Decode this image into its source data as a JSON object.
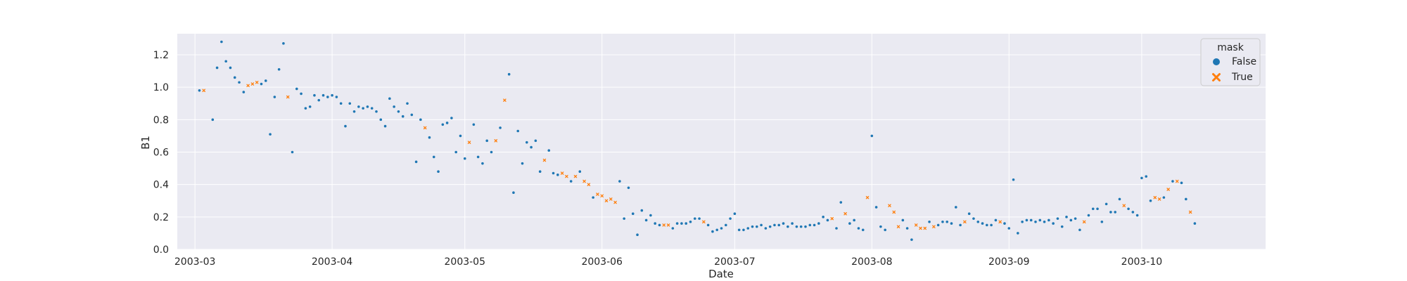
{
  "chart_data": {
    "type": "scatter",
    "xlabel": "Date",
    "ylabel": "B1",
    "x_ticks": [
      "2003-03",
      "2003-04",
      "2003-05",
      "2003-06",
      "2003-07",
      "2003-08",
      "2003-09",
      "2003-10"
    ],
    "xlim": [
      "2003-02-25",
      "2003-10-29"
    ],
    "ylim": [
      0.0,
      1.33
    ],
    "y_ticks": [
      0.0,
      0.2,
      0.4,
      0.6,
      0.8,
      1.0,
      1.2
    ],
    "grid": true,
    "legend": {
      "title": "mask",
      "placement": "top-right",
      "entries": [
        {
          "label": "False",
          "marker": "circle",
          "color": "#1f77b4"
        },
        {
          "label": "True",
          "marker": "x",
          "color": "#ff7f0e"
        }
      ]
    },
    "colors": {
      "axes_background": "#eaeaf2",
      "grid": "#ffffff"
    },
    "series": [
      {
        "name": "False",
        "color": "#1f77b4",
        "marker": "circle",
        "points": [
          [
            "2003-03-02",
            0.98
          ],
          [
            "2003-03-05",
            0.8
          ],
          [
            "2003-03-06",
            1.12
          ],
          [
            "2003-03-07",
            1.28
          ],
          [
            "2003-03-08",
            1.16
          ],
          [
            "2003-03-09",
            1.12
          ],
          [
            "2003-03-10",
            1.06
          ],
          [
            "2003-03-11",
            1.03
          ],
          [
            "2003-03-12",
            0.97
          ],
          [
            "2003-03-16",
            1.02
          ],
          [
            "2003-03-17",
            1.04
          ],
          [
            "2003-03-18",
            0.71
          ],
          [
            "2003-03-19",
            0.94
          ],
          [
            "2003-03-20",
            1.11
          ],
          [
            "2003-03-21",
            1.27
          ],
          [
            "2003-03-23",
            0.6
          ],
          [
            "2003-03-24",
            0.99
          ],
          [
            "2003-03-25",
            0.96
          ],
          [
            "2003-03-26",
            0.87
          ],
          [
            "2003-03-27",
            0.88
          ],
          [
            "2003-03-28",
            0.95
          ],
          [
            "2003-03-29",
            0.92
          ],
          [
            "2003-03-30",
            0.95
          ],
          [
            "2003-03-31",
            0.94
          ],
          [
            "2003-04-01",
            0.95
          ],
          [
            "2003-04-02",
            0.94
          ],
          [
            "2003-04-03",
            0.9
          ],
          [
            "2003-04-04",
            0.76
          ],
          [
            "2003-04-05",
            0.9
          ],
          [
            "2003-04-06",
            0.85
          ],
          [
            "2003-04-07",
            0.88
          ],
          [
            "2003-04-08",
            0.87
          ],
          [
            "2003-04-09",
            0.88
          ],
          [
            "2003-04-10",
            0.87
          ],
          [
            "2003-04-11",
            0.85
          ],
          [
            "2003-04-12",
            0.8
          ],
          [
            "2003-04-13",
            0.76
          ],
          [
            "2003-04-14",
            0.93
          ],
          [
            "2003-04-15",
            0.88
          ],
          [
            "2003-04-16",
            0.85
          ],
          [
            "2003-04-17",
            0.82
          ],
          [
            "2003-04-18",
            0.9
          ],
          [
            "2003-04-19",
            0.83
          ],
          [
            "2003-04-20",
            0.54
          ],
          [
            "2003-04-21",
            0.8
          ],
          [
            "2003-04-23",
            0.69
          ],
          [
            "2003-04-24",
            0.57
          ],
          [
            "2003-04-25",
            0.48
          ],
          [
            "2003-04-26",
            0.77
          ],
          [
            "2003-04-27",
            0.78
          ],
          [
            "2003-04-28",
            0.81
          ],
          [
            "2003-04-29",
            0.6
          ],
          [
            "2003-04-30",
            0.7
          ],
          [
            "2003-05-01",
            0.56
          ],
          [
            "2003-05-03",
            0.77
          ],
          [
            "2003-05-04",
            0.57
          ],
          [
            "2003-05-05",
            0.53
          ],
          [
            "2003-05-06",
            0.67
          ],
          [
            "2003-05-07",
            0.6
          ],
          [
            "2003-05-09",
            0.75
          ],
          [
            "2003-05-11",
            1.08
          ],
          [
            "2003-05-12",
            0.35
          ],
          [
            "2003-05-13",
            0.73
          ],
          [
            "2003-05-14",
            0.53
          ],
          [
            "2003-05-15",
            0.66
          ],
          [
            "2003-05-16",
            0.63
          ],
          [
            "2003-05-17",
            0.67
          ],
          [
            "2003-05-18",
            0.48
          ],
          [
            "2003-05-20",
            0.61
          ],
          [
            "2003-05-21",
            0.47
          ],
          [
            "2003-05-22",
            0.46
          ],
          [
            "2003-05-25",
            0.42
          ],
          [
            "2003-05-27",
            0.48
          ],
          [
            "2003-05-30",
            0.32
          ],
          [
            "2003-06-05",
            0.42
          ],
          [
            "2003-06-06",
            0.19
          ],
          [
            "2003-06-07",
            0.38
          ],
          [
            "2003-06-08",
            0.22
          ],
          [
            "2003-06-09",
            0.09
          ],
          [
            "2003-06-10",
            0.24
          ],
          [
            "2003-06-11",
            0.18
          ],
          [
            "2003-06-12",
            0.21
          ],
          [
            "2003-06-13",
            0.16
          ],
          [
            "2003-06-14",
            0.15
          ],
          [
            "2003-06-17",
            0.13
          ],
          [
            "2003-06-18",
            0.16
          ],
          [
            "2003-06-19",
            0.16
          ],
          [
            "2003-06-20",
            0.16
          ],
          [
            "2003-06-21",
            0.17
          ],
          [
            "2003-06-22",
            0.19
          ],
          [
            "2003-06-23",
            0.19
          ],
          [
            "2003-06-25",
            0.15
          ],
          [
            "2003-06-26",
            0.11
          ],
          [
            "2003-06-27",
            0.12
          ],
          [
            "2003-06-28",
            0.13
          ],
          [
            "2003-06-29",
            0.15
          ],
          [
            "2003-06-30",
            0.19
          ],
          [
            "2003-07-01",
            0.22
          ],
          [
            "2003-07-02",
            0.12
          ],
          [
            "2003-07-03",
            0.12
          ],
          [
            "2003-07-04",
            0.13
          ],
          [
            "2003-07-05",
            0.14
          ],
          [
            "2003-07-06",
            0.14
          ],
          [
            "2003-07-07",
            0.15
          ],
          [
            "2003-07-08",
            0.13
          ],
          [
            "2003-07-09",
            0.14
          ],
          [
            "2003-07-10",
            0.15
          ],
          [
            "2003-07-11",
            0.15
          ],
          [
            "2003-07-12",
            0.16
          ],
          [
            "2003-07-13",
            0.14
          ],
          [
            "2003-07-14",
            0.16
          ],
          [
            "2003-07-15",
            0.14
          ],
          [
            "2003-07-16",
            0.14
          ],
          [
            "2003-07-17",
            0.14
          ],
          [
            "2003-07-18",
            0.15
          ],
          [
            "2003-07-19",
            0.15
          ],
          [
            "2003-07-20",
            0.16
          ],
          [
            "2003-07-21",
            0.2
          ],
          [
            "2003-07-22",
            0.18
          ],
          [
            "2003-07-24",
            0.13
          ],
          [
            "2003-07-25",
            0.29
          ],
          [
            "2003-07-27",
            0.16
          ],
          [
            "2003-07-28",
            0.18
          ],
          [
            "2003-07-29",
            0.13
          ],
          [
            "2003-07-30",
            0.12
          ],
          [
            "2003-08-01",
            0.7
          ],
          [
            "2003-08-02",
            0.26
          ],
          [
            "2003-08-03",
            0.14
          ],
          [
            "2003-08-04",
            0.12
          ],
          [
            "2003-08-08",
            0.18
          ],
          [
            "2003-08-09",
            0.13
          ],
          [
            "2003-08-10",
            0.06
          ],
          [
            "2003-08-14",
            0.17
          ],
          [
            "2003-08-16",
            0.15
          ],
          [
            "2003-08-17",
            0.17
          ],
          [
            "2003-08-18",
            0.17
          ],
          [
            "2003-08-19",
            0.16
          ],
          [
            "2003-08-20",
            0.26
          ],
          [
            "2003-08-21",
            0.15
          ],
          [
            "2003-08-23",
            0.22
          ],
          [
            "2003-08-24",
            0.19
          ],
          [
            "2003-08-25",
            0.17
          ],
          [
            "2003-08-26",
            0.16
          ],
          [
            "2003-08-27",
            0.15
          ],
          [
            "2003-08-28",
            0.15
          ],
          [
            "2003-08-29",
            0.18
          ],
          [
            "2003-08-31",
            0.16
          ],
          [
            "2003-09-01",
            0.13
          ],
          [
            "2003-09-02",
            0.43
          ],
          [
            "2003-09-03",
            0.1
          ],
          [
            "2003-09-04",
            0.17
          ],
          [
            "2003-09-05",
            0.18
          ],
          [
            "2003-09-06",
            0.18
          ],
          [
            "2003-09-07",
            0.17
          ],
          [
            "2003-09-08",
            0.18
          ],
          [
            "2003-09-09",
            0.17
          ],
          [
            "2003-09-10",
            0.18
          ],
          [
            "2003-09-11",
            0.16
          ],
          [
            "2003-09-12",
            0.19
          ],
          [
            "2003-09-13",
            0.14
          ],
          [
            "2003-09-14",
            0.2
          ],
          [
            "2003-09-15",
            0.18
          ],
          [
            "2003-09-16",
            0.19
          ],
          [
            "2003-09-17",
            0.12
          ],
          [
            "2003-09-19",
            0.21
          ],
          [
            "2003-09-20",
            0.25
          ],
          [
            "2003-09-21",
            0.25
          ],
          [
            "2003-09-22",
            0.17
          ],
          [
            "2003-09-23",
            0.28
          ],
          [
            "2003-09-24",
            0.23
          ],
          [
            "2003-09-25",
            0.23
          ],
          [
            "2003-09-26",
            0.31
          ],
          [
            "2003-09-28",
            0.25
          ],
          [
            "2003-09-29",
            0.23
          ],
          [
            "2003-09-30",
            0.21
          ],
          [
            "2003-10-01",
            0.44
          ],
          [
            "2003-10-02",
            0.45
          ],
          [
            "2003-10-03",
            0.3
          ],
          [
            "2003-10-06",
            0.32
          ],
          [
            "2003-10-08",
            0.42
          ],
          [
            "2003-10-10",
            0.41
          ],
          [
            "2003-10-11",
            0.31
          ],
          [
            "2003-10-13",
            0.16
          ]
        ]
      },
      {
        "name": "True",
        "color": "#ff7f0e",
        "marker": "x",
        "points": [
          [
            "2003-03-03",
            0.98
          ],
          [
            "2003-03-13",
            1.01
          ],
          [
            "2003-03-14",
            1.02
          ],
          [
            "2003-03-15",
            1.03
          ],
          [
            "2003-03-22",
            0.94
          ],
          [
            "2003-04-22",
            0.75
          ],
          [
            "2003-05-02",
            0.66
          ],
          [
            "2003-05-08",
            0.67
          ],
          [
            "2003-05-10",
            0.92
          ],
          [
            "2003-05-19",
            0.55
          ],
          [
            "2003-05-23",
            0.47
          ],
          [
            "2003-05-24",
            0.45
          ],
          [
            "2003-05-26",
            0.45
          ],
          [
            "2003-05-28",
            0.42
          ],
          [
            "2003-05-29",
            0.4
          ],
          [
            "2003-05-31",
            0.34
          ],
          [
            "2003-06-01",
            0.33
          ],
          [
            "2003-06-02",
            0.3
          ],
          [
            "2003-06-03",
            0.31
          ],
          [
            "2003-06-04",
            0.29
          ],
          [
            "2003-06-15",
            0.15
          ],
          [
            "2003-06-16",
            0.15
          ],
          [
            "2003-06-24",
            0.17
          ],
          [
            "2003-07-23",
            0.19
          ],
          [
            "2003-07-26",
            0.22
          ],
          [
            "2003-07-31",
            0.32
          ],
          [
            "2003-08-05",
            0.27
          ],
          [
            "2003-08-06",
            0.23
          ],
          [
            "2003-08-07",
            0.14
          ],
          [
            "2003-08-11",
            0.15
          ],
          [
            "2003-08-12",
            0.13
          ],
          [
            "2003-08-13",
            0.13
          ],
          [
            "2003-08-15",
            0.14
          ],
          [
            "2003-08-22",
            0.17
          ],
          [
            "2003-08-30",
            0.17
          ],
          [
            "2003-09-18",
            0.17
          ],
          [
            "2003-09-27",
            0.27
          ],
          [
            "2003-10-04",
            0.32
          ],
          [
            "2003-10-05",
            0.31
          ],
          [
            "2003-10-07",
            0.37
          ],
          [
            "2003-10-09",
            0.42
          ],
          [
            "2003-10-12",
            0.23
          ]
        ]
      }
    ]
  }
}
